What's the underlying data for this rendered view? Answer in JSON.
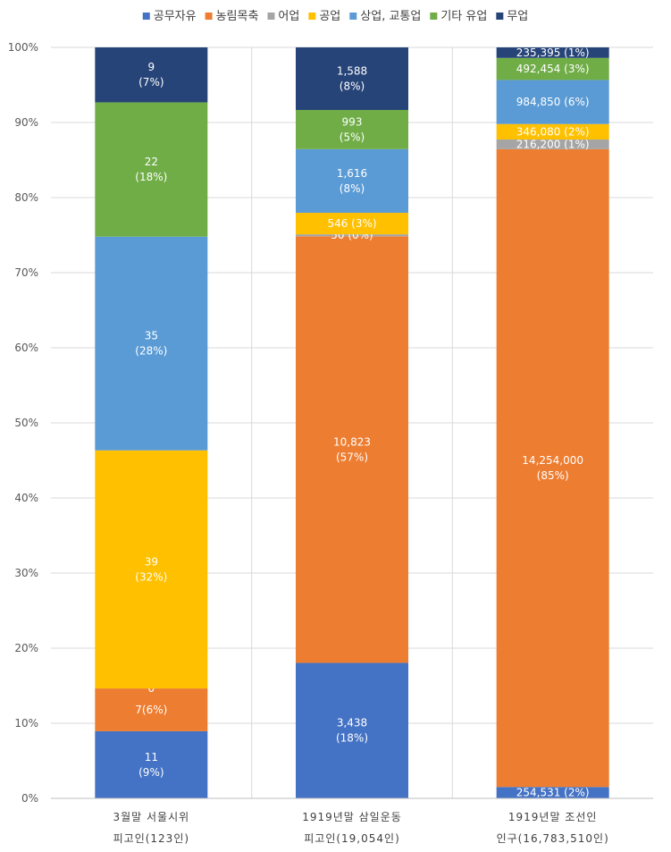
{
  "chart_data": {
    "type": "bar",
    "stacked": "percent",
    "legend_position": "top",
    "grid": true,
    "ylim": [
      0,
      100
    ],
    "yticks": [
      "0%",
      "10%",
      "20%",
      "30%",
      "40%",
      "50%",
      "60%",
      "70%",
      "80%",
      "90%",
      "100%"
    ],
    "categories": [
      [
        "3월말 서울시위",
        "피고인(123인)"
      ],
      [
        "1919년말 삼일운동",
        "피고인(19,054인)"
      ],
      [
        "1919년말 조선인",
        "인구(16,783,510인)"
      ]
    ],
    "series": [
      {
        "name": "공무자유",
        "color": "#4472C4",
        "values": [
          11,
          3438,
          254531
        ],
        "labels": [
          [
            "11",
            "(9%)"
          ],
          [
            "3,438",
            "(18%)"
          ],
          [
            "254,531 (2%)"
          ]
        ]
      },
      {
        "name": "농림목축",
        "color": "#ED7D31",
        "values": [
          7,
          10823,
          14254000
        ],
        "labels": [
          [
            "7(6%)"
          ],
          [
            "10,823",
            "(57%)"
          ],
          [
            "14,254,000",
            "(85%)"
          ]
        ]
      },
      {
        "name": "어업",
        "color": "#A5A5A5",
        "values": [
          0,
          50,
          216200
        ],
        "labels": [
          [
            "0"
          ],
          [
            "50 (0%)"
          ],
          [
            "216,200 (1%)"
          ]
        ]
      },
      {
        "name": "공업",
        "color": "#FFC000",
        "values": [
          39,
          546,
          346080
        ],
        "labels": [
          [
            "39",
            "(32%)"
          ],
          [
            "546 (3%)"
          ],
          [
            "346,080 (2%)"
          ]
        ]
      },
      {
        "name": "상업, 교통업",
        "color": "#5B9BD5",
        "values": [
          35,
          1616,
          984850
        ],
        "labels": [
          [
            "35",
            "(28%)"
          ],
          [
            "1,616",
            "(8%)"
          ],
          [
            "984,850 (6%)"
          ]
        ]
      },
      {
        "name": "기타 유업",
        "color": "#70AD47",
        "values": [
          22,
          993,
          492454
        ],
        "labels": [
          [
            "22",
            "(18%)"
          ],
          [
            "993",
            "(5%)"
          ],
          [
            "492,454  (3%)"
          ]
        ]
      },
      {
        "name": "무업",
        "color": "#264478",
        "values": [
          9,
          1588,
          235395
        ],
        "labels": [
          [
            "9",
            "(7%)"
          ],
          [
            "1,588",
            "(8%)"
          ],
          [
            "235,395  (1%)"
          ]
        ]
      }
    ]
  }
}
